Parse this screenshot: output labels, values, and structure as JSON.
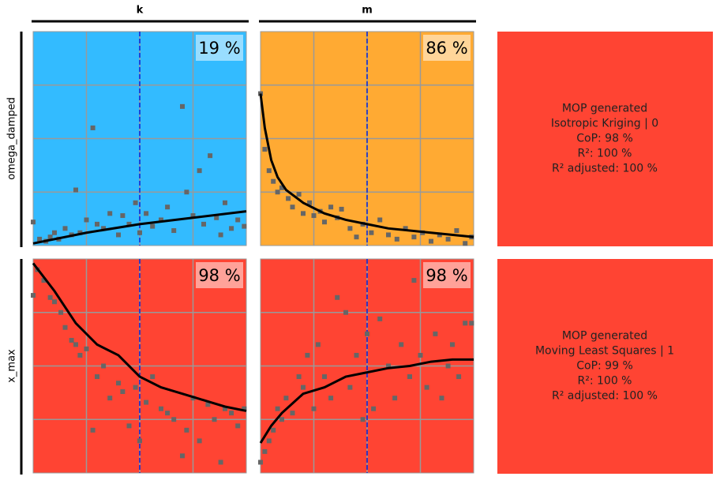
{
  "columns": [
    "k",
    "m"
  ],
  "rows": [
    {
      "label": "omega_damped",
      "summary": [
        "MOP generated",
        "Isotropic Kriging | 0",
        "CoP: 98 %",
        "R²: 100 %",
        "R² adjusted: 100 %"
      ],
      "panels": [
        {
          "type": "scatter",
          "cop": "19 %",
          "color": "#33bbff",
          "xlim": [
            0,
            1
          ],
          "ylim": [
            0,
            1
          ],
          "grid": [
            0.25,
            0.5,
            0.75
          ],
          "reference_x": 0.5,
          "points": {
            "x": [
              0,
              0.03,
              0.06,
              0.08,
              0.1,
              0.12,
              0.15,
              0.18,
              0.2,
              0.22,
              0.25,
              0.28,
              0.3,
              0.33,
              0.36,
              0.4,
              0.42,
              0.45,
              0.48,
              0.5,
              0.53,
              0.56,
              0.6,
              0.63,
              0.66,
              0.7,
              0.72,
              0.75,
              0.78,
              0.8,
              0.83,
              0.86,
              0.88,
              0.9,
              0.93,
              0.96,
              0.99
            ],
            "y": [
              0.11,
              0.03,
              0.02,
              0.04,
              0.06,
              0.03,
              0.08,
              0.05,
              0.26,
              0.06,
              0.12,
              0.55,
              0.1,
              0.08,
              0.15,
              0.05,
              0.14,
              0.1,
              0.2,
              0.06,
              0.15,
              0.09,
              0.12,
              0.18,
              0.07,
              0.65,
              0.25,
              0.14,
              0.35,
              0.1,
              0.42,
              0.13,
              0.05,
              0.2,
              0.08,
              0.12,
              0.09
            ]
          },
          "curve": {
            "x": [
              0,
              0.25,
              0.5,
              0.75,
              1
            ],
            "y": [
              0.01,
              0.06,
              0.1,
              0.13,
              0.16
            ]
          }
        },
        {
          "type": "scatter",
          "cop": "86 %",
          "color": "#ffaa33",
          "xlim": [
            0,
            1
          ],
          "ylim": [
            0,
            1
          ],
          "grid": [
            0.25,
            0.5,
            0.75
          ],
          "reference_x": 0.5,
          "points": {
            "x": [
              0,
              0.02,
              0.04,
              0.06,
              0.08,
              0.1,
              0.13,
              0.15,
              0.18,
              0.2,
              0.23,
              0.25,
              0.28,
              0.3,
              0.33,
              0.36,
              0.38,
              0.42,
              0.45,
              0.48,
              0.52,
              0.56,
              0.6,
              0.64,
              0.68,
              0.72,
              0.76,
              0.8,
              0.84,
              0.88,
              0.92,
              0.96,
              0.99
            ],
            "y": [
              0.71,
              0.45,
              0.35,
              0.3,
              0.25,
              0.27,
              0.22,
              0.18,
              0.24,
              0.15,
              0.2,
              0.14,
              0.16,
              0.11,
              0.18,
              0.13,
              0.17,
              0.08,
              0.04,
              0.1,
              0.06,
              0.12,
              0.05,
              0.03,
              0.08,
              0.04,
              0.06,
              0.02,
              0.05,
              0.03,
              0.07,
              0.01,
              0.04
            ]
          },
          "curve": {
            "x": [
              0,
              0.02,
              0.05,
              0.08,
              0.12,
              0.2,
              0.3,
              0.4,
              0.5,
              0.6,
              0.8,
              1
            ],
            "y": [
              0.71,
              0.55,
              0.4,
              0.32,
              0.26,
              0.2,
              0.15,
              0.12,
              0.1,
              0.08,
              0.06,
              0.04
            ]
          }
        }
      ]
    },
    {
      "label": "x_max",
      "summary": [
        "MOP generated",
        "Moving Least Squares | 1",
        "CoP: 99 %",
        "R²: 100 %",
        "R² adjusted: 100 %"
      ],
      "panels": [
        {
          "type": "scatter",
          "cop": "98 %",
          "color": "#ff4433",
          "xlim": [
            0,
            1
          ],
          "ylim": [
            0,
            1
          ],
          "grid": [
            0.25,
            0.5,
            0.75
          ],
          "reference_x": 0.5,
          "points": {
            "x": [
              0,
              0.02,
              0.05,
              0.08,
              0.1,
              0.13,
              0.15,
              0.18,
              0.2,
              0.22,
              0.25,
              0.28,
              0.3,
              0.33,
              0.36,
              0.4,
              0.42,
              0.45,
              0.48,
              0.5,
              0.53,
              0.56,
              0.6,
              0.63,
              0.66,
              0.7,
              0.72,
              0.75,
              0.78,
              0.82,
              0.85,
              0.88,
              0.9,
              0.93,
              0.96,
              0.99
            ],
            "y": [
              0.83,
              0.95,
              0.9,
              0.82,
              0.8,
              0.75,
              0.68,
              0.62,
              0.6,
              0.55,
              0.58,
              0.2,
              0.45,
              0.5,
              0.35,
              0.42,
              0.38,
              0.22,
              0.4,
              0.15,
              0.33,
              0.45,
              0.3,
              0.28,
              0.25,
              0.08,
              0.2,
              0.35,
              0.15,
              0.32,
              0.25,
              0.05,
              0.3,
              0.28,
              0.22,
              0.3
            ]
          },
          "curve": {
            "x": [
              0,
              0.1,
              0.2,
              0.3,
              0.4,
              0.5,
              0.6,
              0.7,
              0.8,
              0.9,
              1
            ],
            "y": [
              0.98,
              0.85,
              0.7,
              0.6,
              0.55,
              0.45,
              0.4,
              0.37,
              0.34,
              0.31,
              0.29
            ]
          }
        },
        {
          "type": "scatter",
          "cop": "98 %",
          "color": "#ff4433",
          "xlim": [
            0,
            1
          ],
          "ylim": [
            0,
            1
          ],
          "grid": [
            0.25,
            0.5,
            0.75
          ],
          "reference_x": 0.5,
          "points": {
            "x": [
              0,
              0.02,
              0.04,
              0.06,
              0.08,
              0.1,
              0.12,
              0.15,
              0.18,
              0.2,
              0.22,
              0.25,
              0.27,
              0.3,
              0.33,
              0.36,
              0.4,
              0.42,
              0.45,
              0.48,
              0.5,
              0.53,
              0.56,
              0.6,
              0.63,
              0.66,
              0.7,
              0.72,
              0.75,
              0.78,
              0.82,
              0.85,
              0.88,
              0.9,
              0.93,
              0.96,
              0.99
            ],
            "y": [
              0.05,
              0.1,
              0.15,
              0.2,
              0.3,
              0.25,
              0.35,
              0.28,
              0.45,
              0.4,
              0.55,
              0.3,
              0.6,
              0.45,
              0.35,
              0.82,
              0.75,
              0.4,
              0.55,
              0.25,
              0.65,
              0.3,
              0.72,
              0.5,
              0.35,
              0.6,
              0.45,
              0.9,
              0.55,
              0.4,
              0.65,
              0.35,
              0.5,
              0.6,
              0.45,
              0.7,
              0.7
            ]
          },
          "curve": {
            "x": [
              0,
              0.05,
              0.1,
              0.2,
              0.3,
              0.4,
              0.5,
              0.6,
              0.7,
              0.8,
              0.9,
              1
            ],
            "y": [
              0.14,
              0.22,
              0.28,
              0.37,
              0.4,
              0.45,
              0.47,
              0.49,
              0.5,
              0.52,
              0.53,
              0.53
            ]
          }
        }
      ]
    }
  ]
}
